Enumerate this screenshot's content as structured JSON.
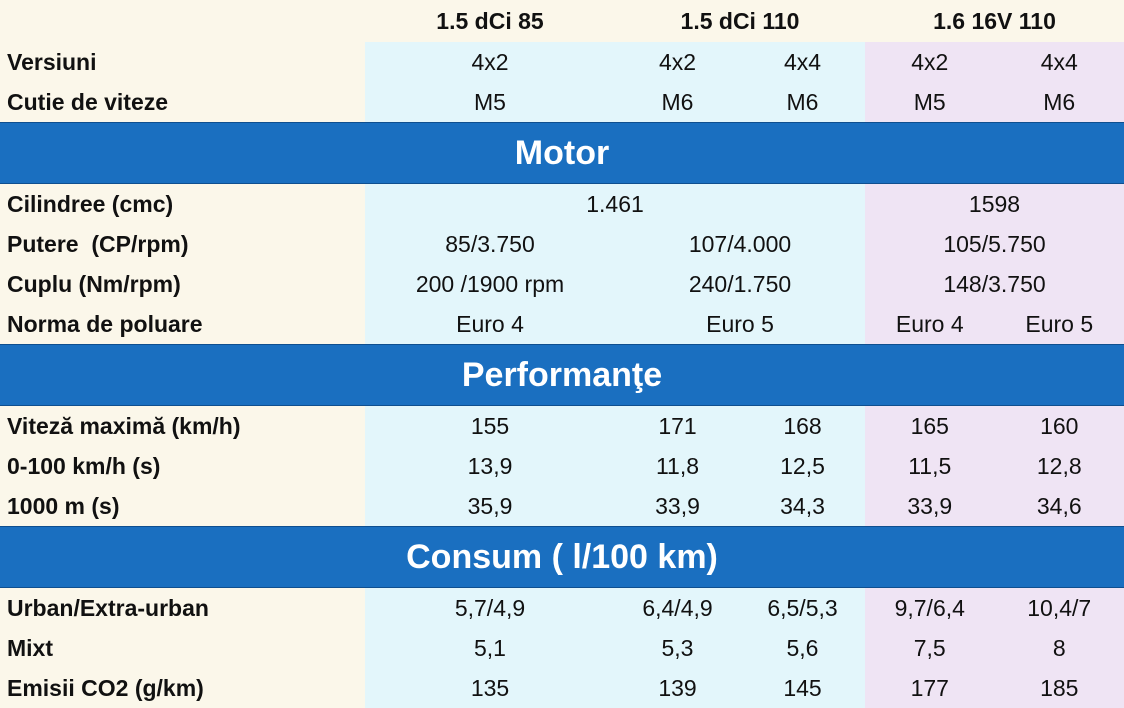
{
  "header": {
    "col1": "1.5 dCi 85",
    "col2": "1.5 dCi 110",
    "col3": "1.6 16V 110"
  },
  "rows": {
    "versiuni": {
      "label": "Versiuni",
      "v1": "4x2",
      "v2a": "4x2",
      "v2b": "4x4",
      "v3a": "4x2",
      "v3b": "4x4"
    },
    "cutie": {
      "label": "Cutie de viteze",
      "v1": "M5",
      "v2a": "M6",
      "v2b": "M6",
      "v3a": "M5",
      "v3b": "M6"
    }
  },
  "motor": {
    "title": "Motor",
    "cilindree": {
      "label": "Cilindree (cmc)",
      "v12": "1.461",
      "v3": "1598"
    },
    "putere": {
      "label": "Putere  (CP/rpm)",
      "v1": "85/3.750",
      "v2": "107/4.000",
      "v3": "105/5.750"
    },
    "cuplu": {
      "label": "Cuplu (Nm/rpm)",
      "v1": "200 /1900 rpm",
      "v2": "240/1.750",
      "v3": "148/3.750"
    },
    "norma": {
      "label": "Norma de poluare",
      "v1": "Euro 4",
      "v2": "Euro 5",
      "v3a": "Euro 4",
      "v3b": "Euro 5"
    }
  },
  "performante": {
    "title": "Performanţe",
    "viteza": {
      "label": "Viteză maximă (km/h)",
      "v1": "155",
      "v2a": "171",
      "v2b": "168",
      "v3a": "165",
      "v3b": "160"
    },
    "accel": {
      "label": "0-100 km/h (s)",
      "v1": "13,9",
      "v2a": "11,8",
      "v2b": "12,5",
      "v3a": "11,5",
      "v3b": "12,8"
    },
    "m1000": {
      "label": "1000 m (s)",
      "v1": "35,9",
      "v2a": "33,9",
      "v2b": "34,3",
      "v3a": "33,9",
      "v3b": "34,6"
    }
  },
  "consum": {
    "title": "Consum ( l/100 km)",
    "urban": {
      "label": "Urban/Extra-urban",
      "v1": "5,7/4,9",
      "v2a": "6,4/4,9",
      "v2b": "6,5/5,3",
      "v3a": "9,7/6,4",
      "v3b": "10,4/7"
    },
    "mixt": {
      "label": "Mixt",
      "v1": "5,1",
      "v2a": "5,3",
      "v2b": "5,6",
      "v3a": "7,5",
      "v3b": "8"
    },
    "co2": {
      "label": "Emisii CO2 (g/km)",
      "v1": "135",
      "v2a": "139",
      "v2b": "145",
      "v3a": "177",
      "v3b": "185"
    }
  },
  "colors": {
    "section_bg": "#1a6fc0",
    "cream": "#fbf7ea",
    "light_blue": "#e3f6fb",
    "light_purple": "#efe4f4"
  }
}
